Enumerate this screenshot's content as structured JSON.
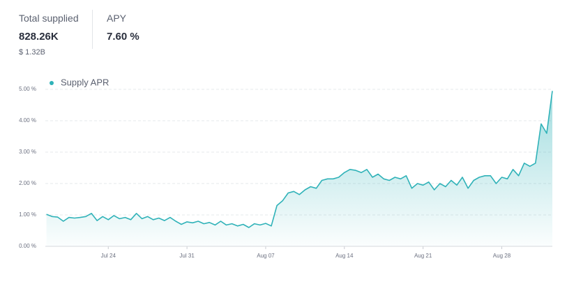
{
  "header": {
    "total_supplied_label": "Total supplied",
    "total_supplied": "828.26K",
    "total_supplied_usd": "$ 1.32B",
    "apy_label": "APY",
    "apy": "7.60 %"
  },
  "chart_data": {
    "type": "area",
    "x": [
      18.5,
      19,
      19.5,
      20,
      20.5,
      21,
      21.5,
      22,
      22.5,
      23,
      23.5,
      24,
      24.5,
      25,
      25.5,
      26,
      26.5,
      27,
      27.5,
      28,
      28.5,
      29,
      29.5,
      30,
      30.5,
      31,
      31.5,
      32,
      32.5,
      33,
      33.5,
      34,
      34.5,
      35,
      35.5,
      36,
      36.5,
      37,
      37.5,
      38,
      38.5,
      39,
      39.5,
      40,
      40.5,
      41,
      41.5,
      42,
      42.5,
      43,
      43.5,
      44,
      44.5,
      45,
      45.5,
      46,
      46.5,
      47,
      47.5,
      48,
      48.5,
      49,
      49.5,
      50,
      50.5,
      51,
      51.5,
      52,
      52.5,
      53,
      53.5,
      54,
      54.5,
      55,
      55.5,
      56,
      56.5,
      57,
      57.5,
      58,
      58.5,
      59,
      59.5,
      60,
      60.5,
      61,
      61.5,
      62,
      62.5,
      63,
      63.5
    ],
    "series": [
      {
        "name": "Supply APR",
        "color": "#2fb2b8",
        "values": [
          1.02,
          0.95,
          0.93,
          0.8,
          0.92,
          0.9,
          0.92,
          0.95,
          1.05,
          0.82,
          0.95,
          0.85,
          0.98,
          0.88,
          0.92,
          0.85,
          1.05,
          0.88,
          0.95,
          0.85,
          0.9,
          0.82,
          0.92,
          0.8,
          0.7,
          0.78,
          0.75,
          0.8,
          0.72,
          0.76,
          0.68,
          0.8,
          0.68,
          0.72,
          0.65,
          0.7,
          0.6,
          0.72,
          0.68,
          0.73,
          0.65,
          1.3,
          1.45,
          1.7,
          1.75,
          1.65,
          1.8,
          1.9,
          1.85,
          2.1,
          2.15,
          2.15,
          2.2,
          2.35,
          2.45,
          2.42,
          2.35,
          2.45,
          2.2,
          2.3,
          2.15,
          2.1,
          2.2,
          2.15,
          2.25,
          1.85,
          2.0,
          1.95,
          2.05,
          1.8,
          2.0,
          1.9,
          2.1,
          1.95,
          2.2,
          1.85,
          2.1,
          2.2,
          2.25,
          2.25,
          2.0,
          2.2,
          2.15,
          2.45,
          2.25,
          2.65,
          2.55,
          2.65,
          3.9,
          3.6,
          4.95
        ]
      }
    ],
    "xlim": [
      18.4,
      63.5
    ],
    "xticks": [
      {
        "value": 24,
        "label": "Jul 24"
      },
      {
        "value": 31,
        "label": "Jul 31"
      },
      {
        "value": 38,
        "label": "Aug 07"
      },
      {
        "value": 45,
        "label": "Aug 14"
      },
      {
        "value": 52,
        "label": "Aug 21"
      },
      {
        "value": 59,
        "label": "Aug 28"
      }
    ],
    "ylim": [
      0,
      5
    ],
    "yticks": [
      {
        "value": 0,
        "label": "0.00 %"
      },
      {
        "value": 1,
        "label": "1.00 %"
      },
      {
        "value": 2,
        "label": "2.00 %"
      },
      {
        "value": 3,
        "label": "3.00 %"
      },
      {
        "value": 4,
        "label": "4.00 %"
      },
      {
        "value": 5,
        "label": "5.00 %"
      }
    ],
    "grid": true
  }
}
